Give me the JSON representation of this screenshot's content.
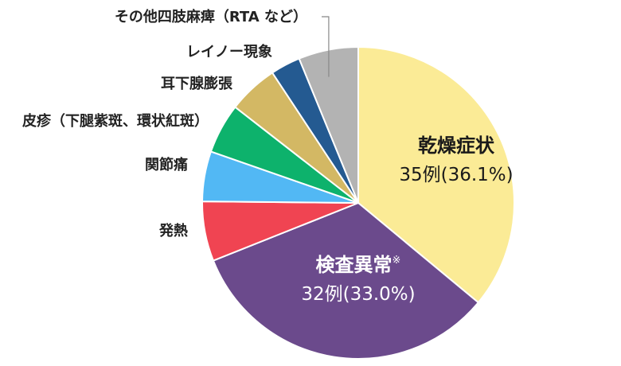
{
  "chart_data": {
    "type": "pie",
    "start_angle_deg": 0,
    "direction": "clockwise",
    "slices": [
      {
        "label": "乾燥症状",
        "count_label": "35例",
        "percent_label": "(36.1%)",
        "value": 36.1,
        "color": "#fbeb96",
        "text_color": "#1a1a1a",
        "label_position": "inside"
      },
      {
        "label": "検査異常",
        "superscript": "※",
        "count_label": "32例",
        "percent_label": "(33.0%)",
        "value": 33.0,
        "color": "#6b4a8c",
        "text_color": "#ffffff",
        "label_position": "inside"
      },
      {
        "label": "発熱",
        "value": 6.2,
        "color": "#f04452",
        "label_position": "outside"
      },
      {
        "label": "関節痛",
        "value": 5.2,
        "color": "#52b8f4",
        "label_position": "outside"
      },
      {
        "label": "皮疹（下腿紫斑、環状紅斑）",
        "value": 5.2,
        "color": "#0db26c",
        "label_position": "outside"
      },
      {
        "label": "耳下腺膨張",
        "value": 5.2,
        "color": "#d3b864",
        "label_position": "outside"
      },
      {
        "label": "レイノー現象",
        "value": 3.1,
        "color": "#245a91",
        "label_position": "outside"
      },
      {
        "label": "その他四肢麻痺（RTA など）",
        "value": 6.2,
        "color": "#b3b3b3",
        "label_position": "outside",
        "leader_line": true
      }
    ]
  }
}
